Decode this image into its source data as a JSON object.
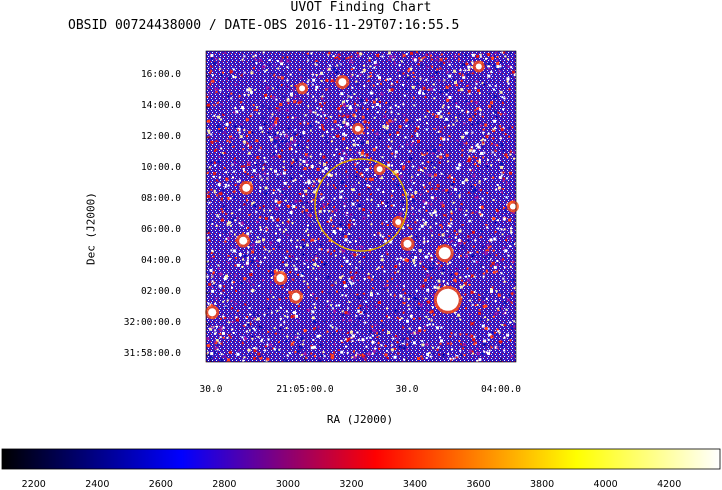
{
  "header": {
    "title": "UVOT Finding Chart",
    "subtitle": "OBSID 00724438000 / DATE-OBS 2016-11-29T07:16:55.5"
  },
  "chart_data": {
    "type": "heatmap",
    "title": "UVOT Finding Chart",
    "subtitle": "OBSID 00724438000 / DATE-OBS 2016-11-29T07:16:55.5",
    "xlabel": "RA (J2000)",
    "ylabel": "Dec (J2000)",
    "x_tick_labels": [
      "30.0",
      "21:05:00.0",
      "30.0",
      "04:00.0"
    ],
    "y_tick_labels": [
      "16:00.0",
      "14:00.0",
      "12:00.0",
      "10:00.0",
      "08:00.0",
      "06:00.0",
      "04:00.0",
      "02:00.0",
      "32:00:00.0",
      "31:58:00.0"
    ],
    "colorbar": {
      "ticks": [
        2200,
        2400,
        2600,
        2800,
        3000,
        3200,
        3400,
        3600,
        3800,
        4000,
        4200
      ],
      "range": [
        2100,
        4360
      ],
      "colormap": [
        "#000000",
        "#0000ff",
        "#ff0000",
        "#ffff00",
        "#ffffff"
      ]
    },
    "annotations": [
      {
        "shape": "circle",
        "color": "#d8a000"
      }
    ]
  }
}
